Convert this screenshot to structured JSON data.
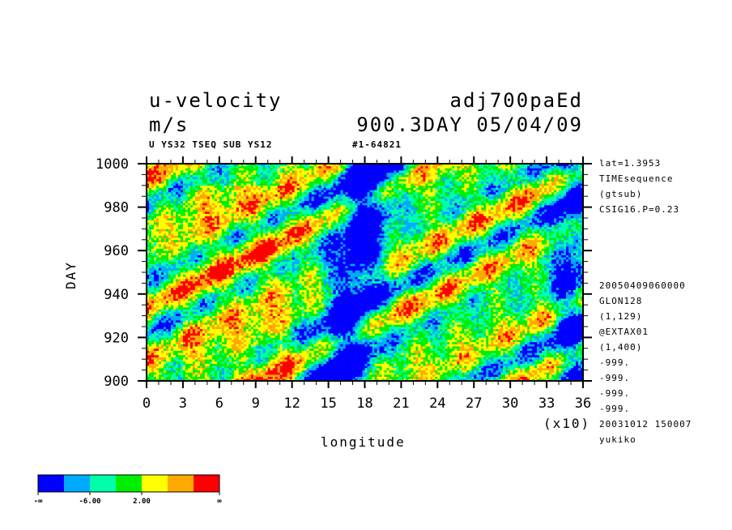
{
  "header": {
    "title_left": "u-velocity",
    "title_right": "adj700paEd",
    "subtitle_left": "m/s",
    "subtitle_right": "900.3DAY 05/04/09",
    "info_left": "U YS32 TSEQ SUB YS12",
    "info_mid": "#1-64821"
  },
  "side_info": [
    "lat=1.3953",
    "TIMEsequence",
    "(gtsub)",
    "CSIG16.P=0.23",
    "20050409060000",
    "GLON128",
    "(1,129)",
    "@EXTAX01",
    "(1,400)",
    "-999.",
    "-999.",
    "-999.",
    "-999.",
    "20031012 150007",
    "yukiko"
  ],
  "chart_data": {
    "type": "heatmap",
    "title": "u-velocity",
    "xlabel": "longitude",
    "ylabel": "DAY",
    "x_multiplier": "(x10)",
    "xlim": [
      0,
      36
    ],
    "ylim": [
      900,
      1000
    ],
    "x_ticks": [
      "0",
      "3",
      "6",
      "9",
      "12",
      "15",
      "18",
      "21",
      "24",
      "27",
      "30",
      "33",
      "36"
    ],
    "y_ticks": [
      "900",
      "920",
      "940",
      "960",
      "980",
      "1000"
    ],
    "colorbar": {
      "colors": [
        "#0000ff",
        "#00aaff",
        "#00ffaa",
        "#00ee00",
        "#ffff00",
        "#ffaa00",
        "#ff0000"
      ],
      "labels": [
        "-∞",
        "-6.00",
        "2.00",
        "∞"
      ]
    }
  }
}
